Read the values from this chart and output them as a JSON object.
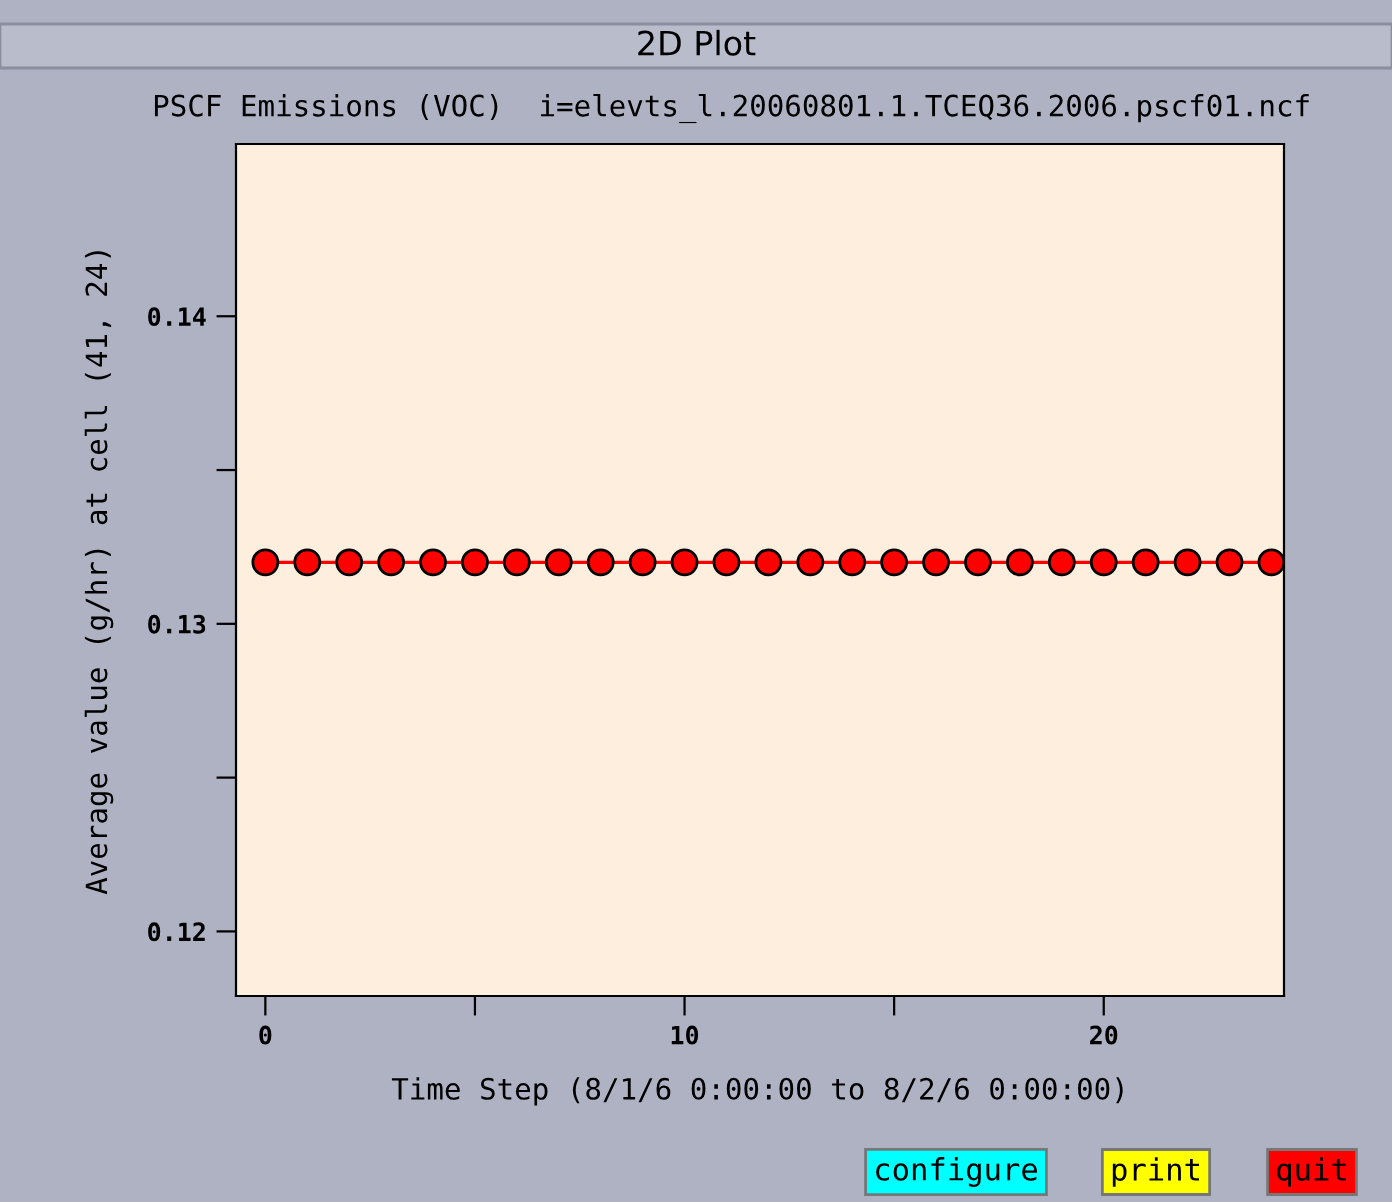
{
  "chart_data": {
    "type": "line",
    "title": "PSCF Emissions (VOC)  i=elevts_l.20060801.1.TCEQ36.2006.pscf01.ncf",
    "xlabel": "Time Step (8/1/6 0:00:00 to 8/2/6 0:00:00)",
    "ylabel": "Average value (g/hr) at cell (41, 24)",
    "x": [
      0,
      1,
      2,
      3,
      4,
      5,
      6,
      7,
      8,
      9,
      10,
      11,
      12,
      13,
      14,
      15,
      16,
      17,
      18,
      19,
      20,
      21,
      22,
      23,
      24
    ],
    "series": [
      {
        "color": "#ff0000",
        "values": [
          0.132,
          0.132,
          0.132,
          0.132,
          0.132,
          0.132,
          0.132,
          0.132,
          0.132,
          0.132,
          0.132,
          0.132,
          0.132,
          0.132,
          0.132,
          0.132,
          0.132,
          0.132,
          0.132,
          0.132,
          0.132,
          0.132,
          0.132,
          0.132,
          0.132
        ]
      }
    ],
    "xlim": [
      -0.7,
      24.3
    ],
    "ylim": [
      0.1179,
      0.1456
    ],
    "xticks": [
      0,
      {
        "value": 5,
        "label": null
      },
      10,
      {
        "value": 15,
        "label": null
      },
      20
    ],
    "yticks": [
      0.12,
      {
        "value": 0.125,
        "label": null
      },
      0.13,
      {
        "value": 0.135,
        "label": null
      },
      0.14
    ],
    "marker": "circle",
    "line_style": "solid",
    "grid": false,
    "annotations": [
      "2D Plot",
      "configure",
      "print",
      "quit"
    ]
  }
}
